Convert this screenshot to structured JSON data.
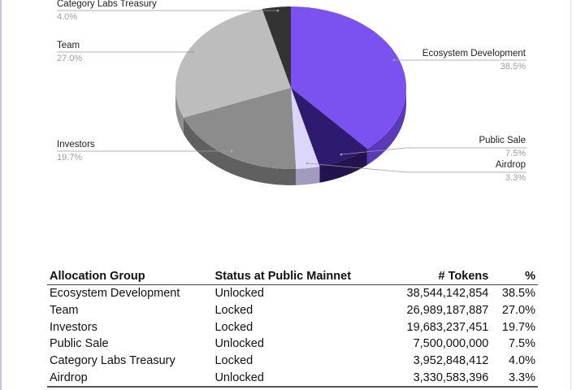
{
  "chart_data": {
    "type": "pie",
    "style": "3d",
    "slices": [
      {
        "label": "Ecosystem Development",
        "value": 38.5,
        "pct_label": "38.5%",
        "color": "#7b52f0",
        "side": "#5a3ab8"
      },
      {
        "label": "Public Sale",
        "value": 7.5,
        "pct_label": "7.5%",
        "color": "#2e1a6e",
        "side": "#22134f"
      },
      {
        "label": "Airdrop",
        "value": 3.3,
        "pct_label": "3.3%",
        "color": "#ddd6fb",
        "side": "#a29bbd"
      },
      {
        "label": "Investors",
        "value": 19.7,
        "pct_label": "19.7%",
        "color": "#8c8c8c",
        "side": "#606060"
      },
      {
        "label": "Team",
        "value": 27.0,
        "pct_label": "27.0%",
        "color": "#bdbdbd",
        "side": "#8f8f8f"
      },
      {
        "label": "Category Labs Treasury",
        "value": 4.0,
        "pct_label": "4.0%",
        "color": "#333333",
        "side": "#1f1f1f"
      }
    ]
  },
  "table": {
    "headers": [
      "Allocation Group",
      "Status at Public Mainnet",
      "# Tokens",
      "%"
    ],
    "rows": [
      [
        "Ecosystem Development",
        "Unlocked",
        "38,544,142,854",
        "38.5%"
      ],
      [
        "Team",
        "Locked",
        "26,989,187,887",
        "27.0%"
      ],
      [
        "Investors",
        "Locked",
        "19,683,237,451",
        "19.7%"
      ],
      [
        "Public Sale",
        "Unlocked",
        "7,500,000,000",
        "7.5%"
      ],
      [
        "Category Labs Treasury",
        "Locked",
        "3,952,848,412",
        "4.0%"
      ],
      [
        "Airdrop",
        "Unlocked",
        "3,330,583,396",
        "3.3%"
      ]
    ]
  }
}
